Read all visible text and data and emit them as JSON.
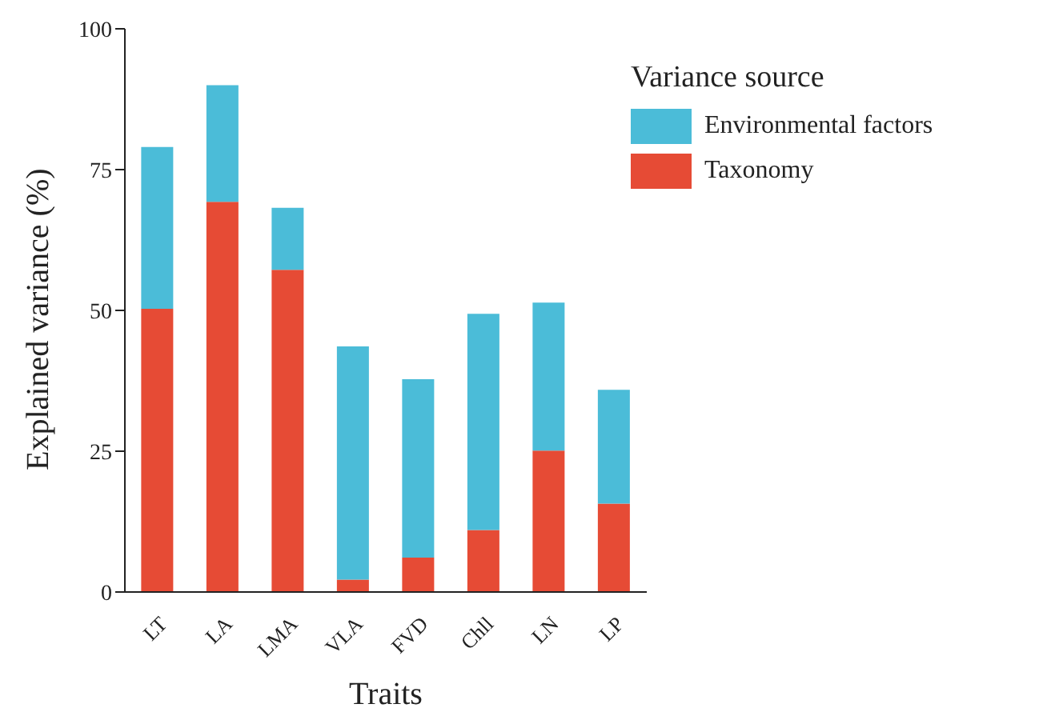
{
  "chart_data": {
    "type": "bar",
    "stacked": true,
    "xlabel": "Traits",
    "ylabel": "Explained variance (%)",
    "legend_title": "Variance source",
    "legend": "top right",
    "grid": false,
    "categories": [
      "LT",
      "LA",
      "LMA",
      "VLA",
      "FVD",
      "Chll",
      "LN",
      "LP"
    ],
    "ylim": [
      0,
      100
    ],
    "yticks": [
      0,
      25,
      50,
      75,
      100
    ],
    "series": [
      {
        "name": "Taxonomy",
        "color": "#e64b35",
        "values": [
          50.3,
          69.3,
          57.2,
          2.2,
          6.1,
          11.0,
          25.1,
          15.7
        ]
      },
      {
        "name": "Environmental factors",
        "color": "#4bbcd8",
        "values": [
          28.7,
          20.7,
          11.0,
          41.4,
          31.7,
          38.4,
          26.3,
          20.2
        ]
      }
    ]
  }
}
